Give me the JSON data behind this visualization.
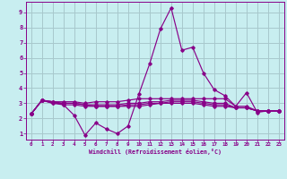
{
  "xlabel": "Windchill (Refroidissement éolien,°C)",
  "bg_color": "#c8eef0",
  "grid_color": "#a8c8cc",
  "line_color": "#880088",
  "xlim": [
    -0.5,
    23.5
  ],
  "ylim": [
    0.6,
    9.7
  ],
  "xticks": [
    0,
    1,
    2,
    3,
    4,
    5,
    6,
    7,
    8,
    9,
    10,
    11,
    12,
    13,
    14,
    15,
    16,
    17,
    18,
    19,
    20,
    21,
    22,
    23
  ],
  "yticks": [
    1,
    2,
    3,
    4,
    5,
    6,
    7,
    8,
    9
  ],
  "series": [
    [
      2.3,
      3.2,
      3.1,
      2.9,
      2.2,
      0.9,
      1.7,
      1.3,
      1.0,
      1.5,
      3.6,
      5.6,
      7.9,
      9.3,
      6.5,
      6.7,
      5.0,
      3.9,
      3.5,
      2.8,
      3.7,
      2.4,
      2.5,
      2.5
    ],
    [
      2.3,
      3.2,
      3.1,
      3.1,
      3.1,
      3.0,
      3.1,
      3.1,
      3.1,
      3.2,
      3.3,
      3.3,
      3.3,
      3.3,
      3.3,
      3.3,
      3.3,
      3.3,
      3.3,
      2.8,
      2.8,
      2.5,
      2.5,
      2.5
    ],
    [
      2.3,
      3.2,
      3.1,
      3.0,
      3.0,
      2.9,
      2.9,
      2.9,
      2.9,
      3.0,
      3.0,
      3.1,
      3.1,
      3.2,
      3.2,
      3.2,
      3.1,
      3.0,
      3.0,
      2.7,
      2.7,
      2.5,
      2.5,
      2.5
    ],
    [
      2.3,
      3.2,
      3.0,
      3.0,
      3.0,
      2.9,
      2.8,
      2.8,
      2.8,
      2.9,
      2.9,
      3.0,
      3.0,
      3.1,
      3.1,
      3.1,
      3.0,
      2.9,
      2.9,
      2.7,
      2.7,
      2.5,
      2.5,
      2.5
    ],
    [
      2.3,
      3.2,
      3.0,
      2.9,
      2.9,
      2.8,
      2.8,
      2.8,
      2.8,
      2.8,
      2.8,
      2.9,
      3.0,
      3.0,
      3.0,
      3.0,
      2.9,
      2.8,
      2.8,
      2.7,
      2.7,
      2.5,
      2.5,
      2.5
    ]
  ]
}
